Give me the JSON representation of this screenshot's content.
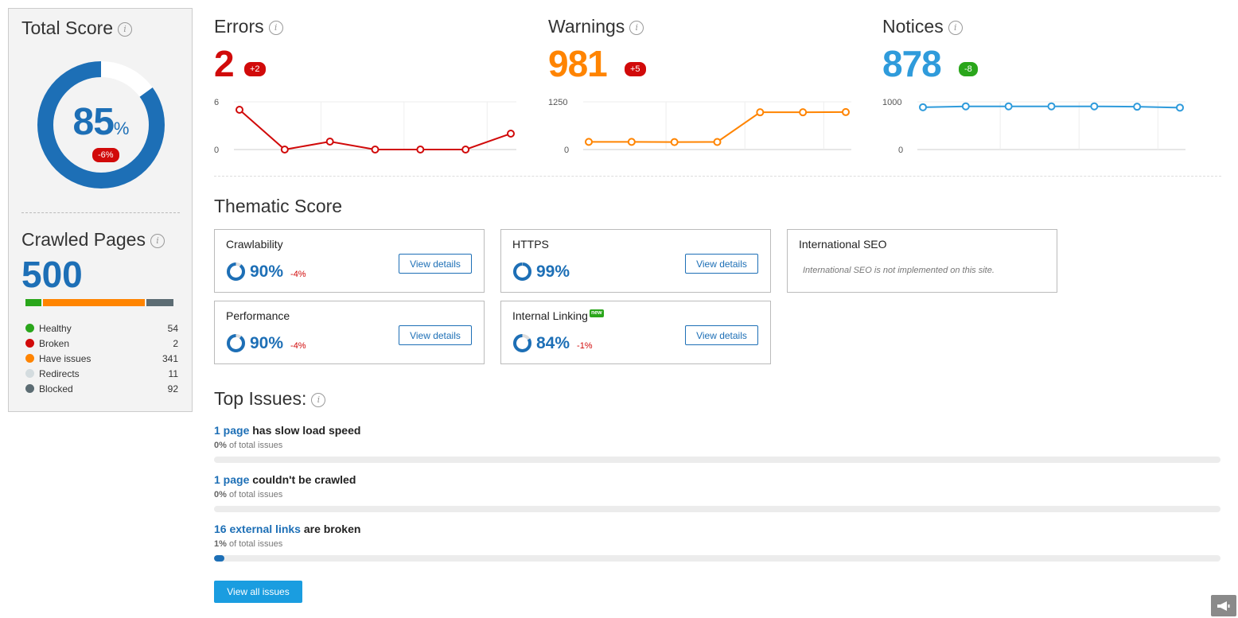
{
  "total_score": {
    "title": "Total Score",
    "value": "85",
    "unit": "%",
    "delta": "-6%",
    "percent": 85
  },
  "crawled_pages": {
    "title": "Crawled Pages",
    "value": "500",
    "legend": [
      {
        "label": "Healthy",
        "count": "54",
        "color": "#2aa61b"
      },
      {
        "label": "Broken",
        "count": "2",
        "color": "#d10a0a"
      },
      {
        "label": "Have issues",
        "count": "341",
        "color": "#ff8400"
      },
      {
        "label": "Redirects",
        "count": "11",
        "color": "#d4dcdf"
      },
      {
        "label": "Blocked",
        "count": "92",
        "color": "#5c6c73"
      }
    ]
  },
  "errors": {
    "title": "Errors",
    "value": "2",
    "delta": "+2",
    "color": "#d10a0a",
    "y_max_label": "6",
    "y_min_label": "0",
    "ylim": [
      0,
      6
    ],
    "points": [
      5,
      0,
      1,
      0,
      0,
      0,
      2
    ]
  },
  "warnings": {
    "title": "Warnings",
    "value": "981",
    "delta": "+5",
    "color": "#ff8400",
    "y_max_label": "1250",
    "y_min_label": "0",
    "ylim": [
      0,
      1250
    ],
    "points": [
      200,
      200,
      195,
      198,
      976,
      976,
      981
    ]
  },
  "notices": {
    "title": "Notices",
    "value": "878",
    "delta": "-8",
    "color": "#2f9bdb",
    "y_max_label": "1000",
    "y_min_label": "0",
    "ylim": [
      0,
      1000
    ],
    "points": [
      886,
      905,
      905,
      905,
      905,
      897,
      878
    ]
  },
  "thematic": {
    "title": "Thematic Score",
    "view_details": "View details",
    "crawlability": {
      "title": "Crawlability",
      "value": "90%",
      "delta": "-4%",
      "percent": 90
    },
    "https": {
      "title": "HTTPS",
      "value": "99%",
      "percent": 99
    },
    "international_seo": {
      "title": "International SEO",
      "note": "International SEO is not implemented on this site."
    },
    "performance": {
      "title": "Performance",
      "value": "90%",
      "delta": "-4%",
      "percent": 90
    },
    "internal_linking": {
      "title": "Internal Linking",
      "badge": "new",
      "value": "84%",
      "delta": "-1%",
      "percent": 84
    }
  },
  "top_issues": {
    "title": "Top Issues:",
    "items": [
      {
        "link": "1 page",
        "text": " has slow load speed",
        "pct": "0%",
        "pct_suffix": " of total issues",
        "fill": 0
      },
      {
        "link": "1 page",
        "text": " couldn't be crawled",
        "pct": "0%",
        "pct_suffix": " of total issues",
        "fill": 0
      },
      {
        "link": "16 external links",
        "text": " are broken",
        "pct": "1%",
        "pct_suffix": " of total issues",
        "fill": 1
      }
    ],
    "view_all": "View all issues"
  }
}
